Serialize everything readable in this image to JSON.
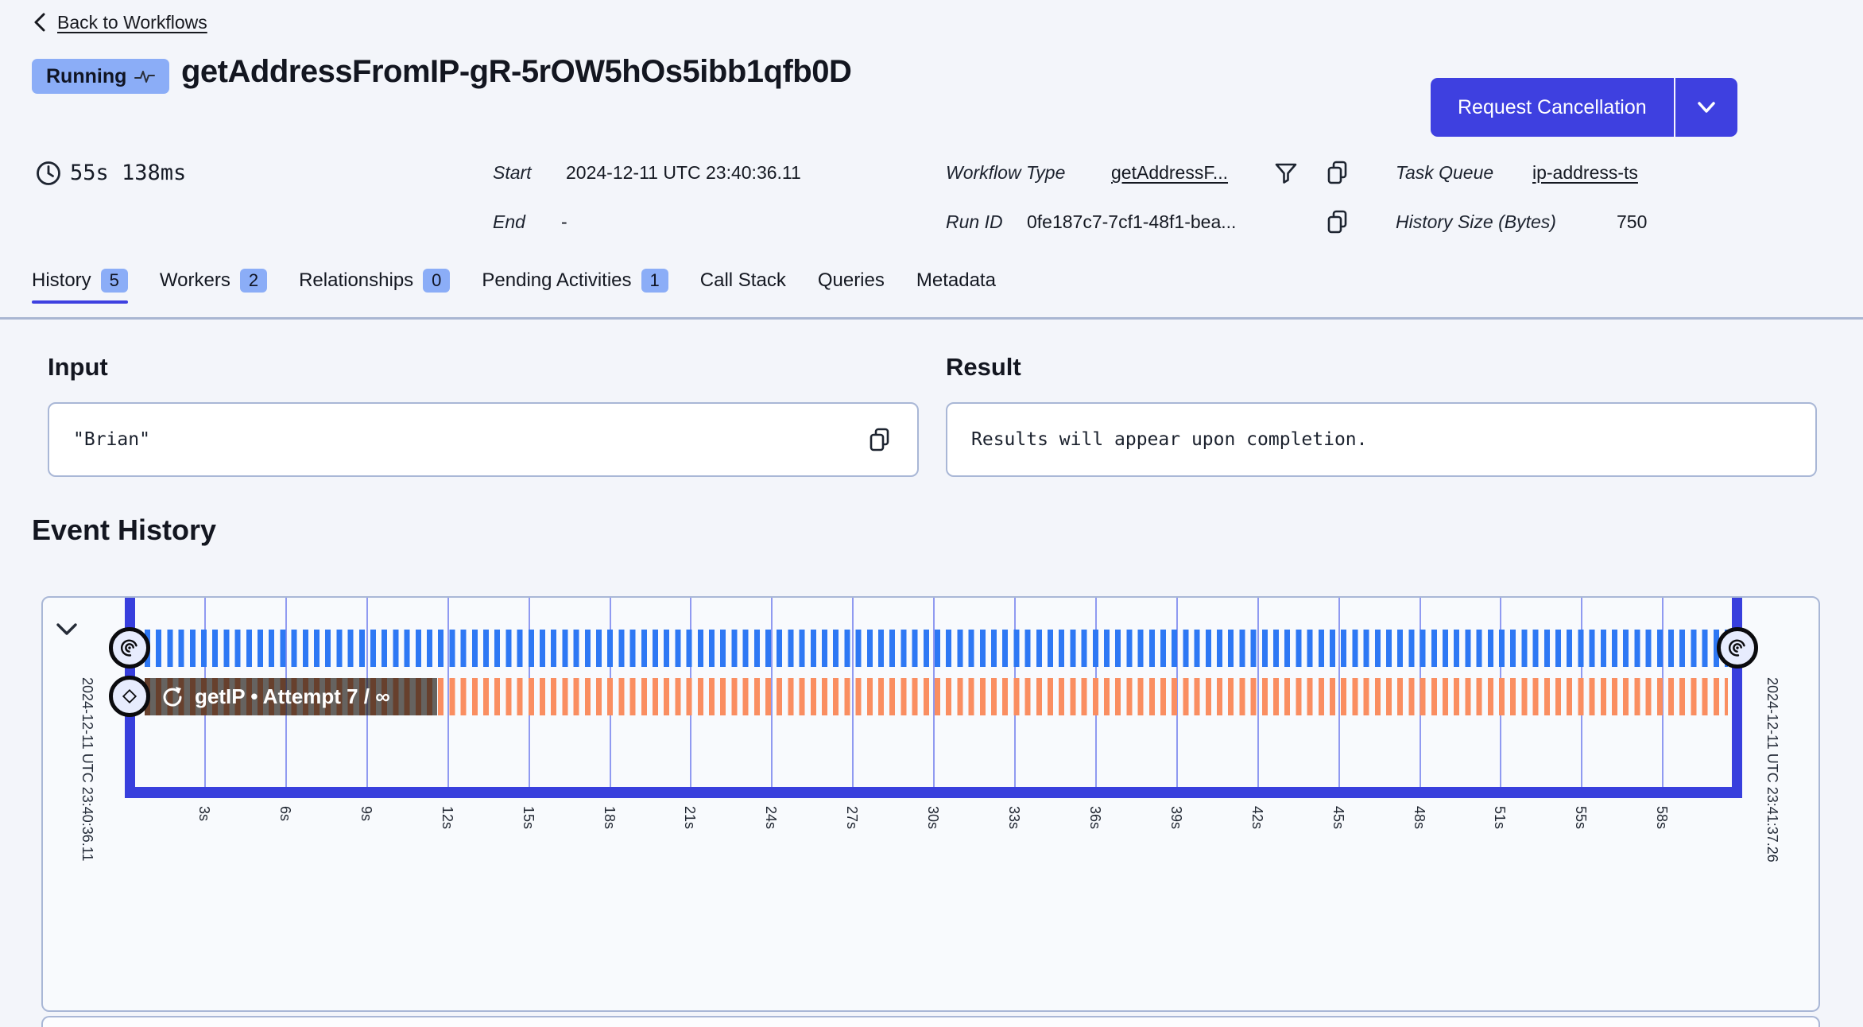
{
  "colors": {
    "accent": "#3e40e0",
    "status_badge": "#8badf7",
    "stripe_blue": "#2e78f4",
    "stripe_orange": "#fa8e61"
  },
  "header": {
    "back_label": "Back to Workflows",
    "status": "Running",
    "title": "getAddressFromIP-gR-5rOW5hOs5ibb1qfb0D",
    "cancel_button": "Request Cancellation",
    "duration": "55s 138ms"
  },
  "meta": {
    "start_label": "Start",
    "start_value": "2024-12-11 UTC 23:40:36.11",
    "end_label": "End",
    "end_value": "-",
    "workflow_type_label": "Workflow Type",
    "workflow_type_value": "getAddressF...",
    "run_id_label": "Run ID",
    "run_id_value": "0fe187c7-7cf1-48f1-bea...",
    "task_queue_label": "Task Queue",
    "task_queue_value": "ip-address-ts",
    "history_size_label": "History Size (Bytes)",
    "history_size_value": "750"
  },
  "tabs": [
    {
      "label": "History",
      "count": "5",
      "active": true
    },
    {
      "label": "Workers",
      "count": "2",
      "active": false
    },
    {
      "label": "Relationships",
      "count": "0",
      "active": false
    },
    {
      "label": "Pending Activities",
      "count": "1",
      "active": false
    },
    {
      "label": "Call Stack",
      "active": false
    },
    {
      "label": "Queries",
      "active": false
    },
    {
      "label": "Metadata",
      "active": false
    }
  ],
  "input_section": {
    "title": "Input",
    "value": "\"Brian\""
  },
  "result_section": {
    "title": "Result",
    "value": "Results will appear upon completion."
  },
  "event_history": {
    "title": "Event History",
    "start_time": "2024-12-11 UTC 23:40:36.11",
    "end_time": "2024-12-11 UTC 23:41:37.26",
    "activity_label": "getIP • Attempt 7 / ∞",
    "ticks": [
      "3s",
      "6s",
      "9s",
      "12s",
      "15s",
      "18s",
      "21s",
      "24s",
      "27s",
      "30s",
      "33s",
      "36s",
      "39s",
      "42s",
      "45s",
      "48s",
      "51s",
      "55s",
      "58s"
    ]
  }
}
